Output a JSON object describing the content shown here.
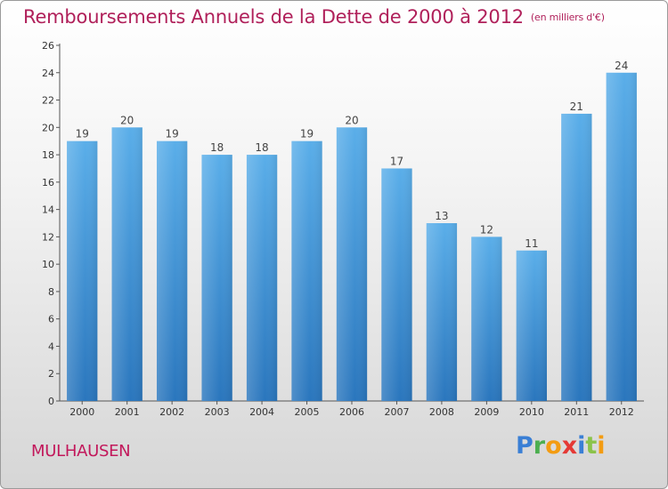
{
  "header": {
    "title": "Remboursements Annuels de la Dette de 2000 à 2012",
    "subtitle": "(en milliers d'€)"
  },
  "footer": {
    "city": "MULHAUSEN",
    "logo": [
      "P",
      "r",
      "o",
      "x",
      "i",
      "t",
      "i"
    ],
    "logo_colors": [
      "#3a7fd5",
      "#4caf50",
      "#f39c12",
      "#e53935",
      "#3a7fd5",
      "#8bc34a",
      "#f39c12"
    ]
  },
  "chart_data": {
    "type": "bar",
    "title": "Remboursements Annuels de la Dette de 2000 à 2012",
    "subtitle": "(en milliers d'€)",
    "categories": [
      "2000",
      "2001",
      "2002",
      "2003",
      "2004",
      "2005",
      "2006",
      "2007",
      "2008",
      "2009",
      "2010",
      "2011",
      "2012"
    ],
    "values": [
      19,
      20,
      19,
      18,
      18,
      19,
      20,
      17,
      13,
      12,
      11,
      21,
      24
    ],
    "ylim": [
      0,
      26
    ],
    "yticks": [
      0,
      2,
      4,
      6,
      8,
      10,
      12,
      14,
      16,
      18,
      20,
      22,
      24,
      26
    ],
    "grid": false,
    "bar_color": "#3c8fd8"
  }
}
